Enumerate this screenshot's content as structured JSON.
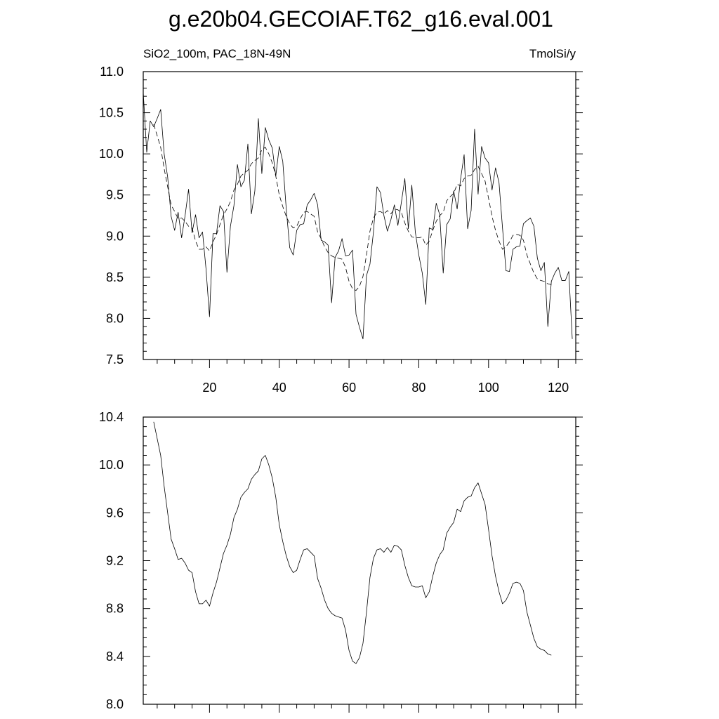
{
  "figure": {
    "title": "g.e20b04.GECOIAF.T62_g16.eval.001"
  },
  "chart_data": [
    {
      "type": "line",
      "title": "SiO2_100m, PAC_18N-49N",
      "units_label": "TmolSi/y",
      "xlim": [
        1,
        125
      ],
      "ylim": [
        7.5,
        11.0
      ],
      "x_ticks": [
        20,
        40,
        60,
        80,
        100,
        120
      ],
      "y_ticks": [
        7.5,
        8.0,
        8.5,
        9.0,
        9.5,
        10.0,
        10.5,
        11.0
      ],
      "y_tick_labels": [
        "7.5",
        "8.0",
        "8.5",
        "9.0",
        "9.5",
        "10.0",
        "10.5",
        "11.0"
      ],
      "grid": false,
      "series": [
        {
          "style": "solid",
          "x_start": 1,
          "values": [
            10.75,
            10.02,
            10.4,
            10.33,
            10.43,
            10.54,
            10.0,
            9.72,
            9.24,
            9.07,
            9.29,
            8.98,
            9.25,
            9.57,
            9.04,
            9.26,
            8.98,
            9.05,
            8.6,
            8.02,
            9.03,
            9.03,
            9.37,
            9.3,
            8.56,
            9.12,
            9.37,
            9.87,
            9.6,
            9.68,
            10.12,
            9.27,
            9.55,
            10.43,
            9.76,
            10.32,
            10.17,
            10.07,
            9.73,
            10.09,
            9.91,
            9.33,
            8.86,
            8.77,
            9.07,
            9.14,
            9.15,
            9.38,
            9.44,
            9.52,
            9.38,
            8.95,
            8.93,
            8.89,
            8.19,
            8.74,
            8.82,
            8.97,
            8.76,
            8.77,
            8.83,
            8.05,
            7.89,
            7.75,
            8.52,
            8.66,
            9.05,
            9.6,
            9.53,
            9.25,
            9.06,
            9.2,
            9.38,
            9.13,
            9.41,
            9.7,
            9.09,
            9.62,
            9.05,
            8.77,
            8.55,
            8.17,
            9.1,
            9.08,
            9.4,
            9.26,
            8.55,
            9.14,
            9.21,
            9.55,
            9.33,
            9.7,
            9.99,
            9.09,
            9.31,
            10.3,
            9.51,
            10.09,
            9.95,
            9.89,
            9.56,
            9.83,
            9.65,
            9.1,
            8.58,
            8.57,
            8.84,
            8.87,
            8.88,
            9.15,
            9.19,
            9.22,
            9.12,
            8.73,
            8.58,
            8.68,
            7.9,
            8.45,
            8.55,
            8.62,
            8.46,
            8.46,
            8.57,
            7.75
          ]
        },
        {
          "style": "dashed",
          "x_start": 4,
          "values": [
            10.36,
            10.22,
            10.08,
            9.82,
            9.6,
            9.38,
            9.3,
            9.21,
            9.22,
            9.18,
            9.12,
            9.1,
            8.94,
            8.84,
            8.84,
            8.87,
            8.82,
            8.93,
            9.02,
            9.14,
            9.26,
            9.33,
            9.42,
            9.56,
            9.63,
            9.73,
            9.77,
            9.8,
            9.88,
            9.92,
            9.95,
            10.05,
            10.08,
            10.0,
            9.89,
            9.73,
            9.5,
            9.36,
            9.24,
            9.15,
            9.1,
            9.12,
            9.21,
            9.29,
            9.3,
            9.27,
            9.24,
            9.05,
            8.97,
            8.87,
            8.8,
            8.76,
            8.74,
            8.73,
            8.72,
            8.62,
            8.45,
            8.36,
            8.34,
            8.39,
            8.51,
            8.77,
            9.06,
            9.22,
            9.29,
            9.3,
            9.27,
            9.31,
            9.27,
            9.33,
            9.32,
            9.29,
            9.16,
            9.06,
            8.99,
            8.98,
            8.98,
            8.99,
            8.89,
            8.94,
            9.07,
            9.18,
            9.25,
            9.29,
            9.43,
            9.48,
            9.52,
            9.63,
            9.61,
            9.7,
            9.73,
            9.74,
            9.81,
            9.85,
            9.76,
            9.67,
            9.46,
            9.24,
            9.07,
            8.94,
            8.84,
            8.87,
            8.93,
            9.01,
            9.02,
            9.01,
            8.95,
            8.77,
            8.66,
            8.55,
            8.48,
            8.46,
            8.45,
            8.42,
            8.41
          ]
        }
      ]
    },
    {
      "type": "line",
      "title": "",
      "xlim": [
        1,
        125
      ],
      "ylim": [
        8.0,
        10.4
      ],
      "y_ticks": [
        8.0,
        8.4,
        8.8,
        9.2,
        9.6,
        10.0,
        10.4
      ],
      "y_tick_labels": [
        "8.0",
        "8.4",
        "8.8",
        "9.2",
        "9.6",
        "10.0",
        "10.4"
      ],
      "grid": false,
      "series": [
        {
          "style": "solid",
          "x_start": 4,
          "values": [
            10.36,
            10.22,
            10.08,
            9.82,
            9.6,
            9.38,
            9.3,
            9.21,
            9.22,
            9.18,
            9.12,
            9.1,
            8.94,
            8.84,
            8.84,
            8.87,
            8.82,
            8.93,
            9.02,
            9.14,
            9.26,
            9.33,
            9.42,
            9.56,
            9.63,
            9.73,
            9.77,
            9.8,
            9.88,
            9.92,
            9.95,
            10.05,
            10.08,
            10.0,
            9.89,
            9.73,
            9.5,
            9.36,
            9.24,
            9.15,
            9.1,
            9.12,
            9.21,
            9.29,
            9.3,
            9.27,
            9.24,
            9.05,
            8.97,
            8.87,
            8.8,
            8.76,
            8.74,
            8.73,
            8.72,
            8.62,
            8.45,
            8.36,
            8.34,
            8.39,
            8.51,
            8.77,
            9.06,
            9.22,
            9.29,
            9.3,
            9.27,
            9.31,
            9.27,
            9.33,
            9.32,
            9.29,
            9.16,
            9.06,
            8.99,
            8.98,
            8.98,
            8.99,
            8.89,
            8.94,
            9.07,
            9.18,
            9.25,
            9.29,
            9.43,
            9.48,
            9.52,
            9.63,
            9.61,
            9.7,
            9.73,
            9.74,
            9.81,
            9.85,
            9.76,
            9.67,
            9.46,
            9.24,
            9.07,
            8.94,
            8.84,
            8.87,
            8.93,
            9.01,
            9.02,
            9.01,
            8.95,
            8.77,
            8.66,
            8.55,
            8.48,
            8.46,
            8.45,
            8.42,
            8.41
          ]
        }
      ]
    }
  ]
}
